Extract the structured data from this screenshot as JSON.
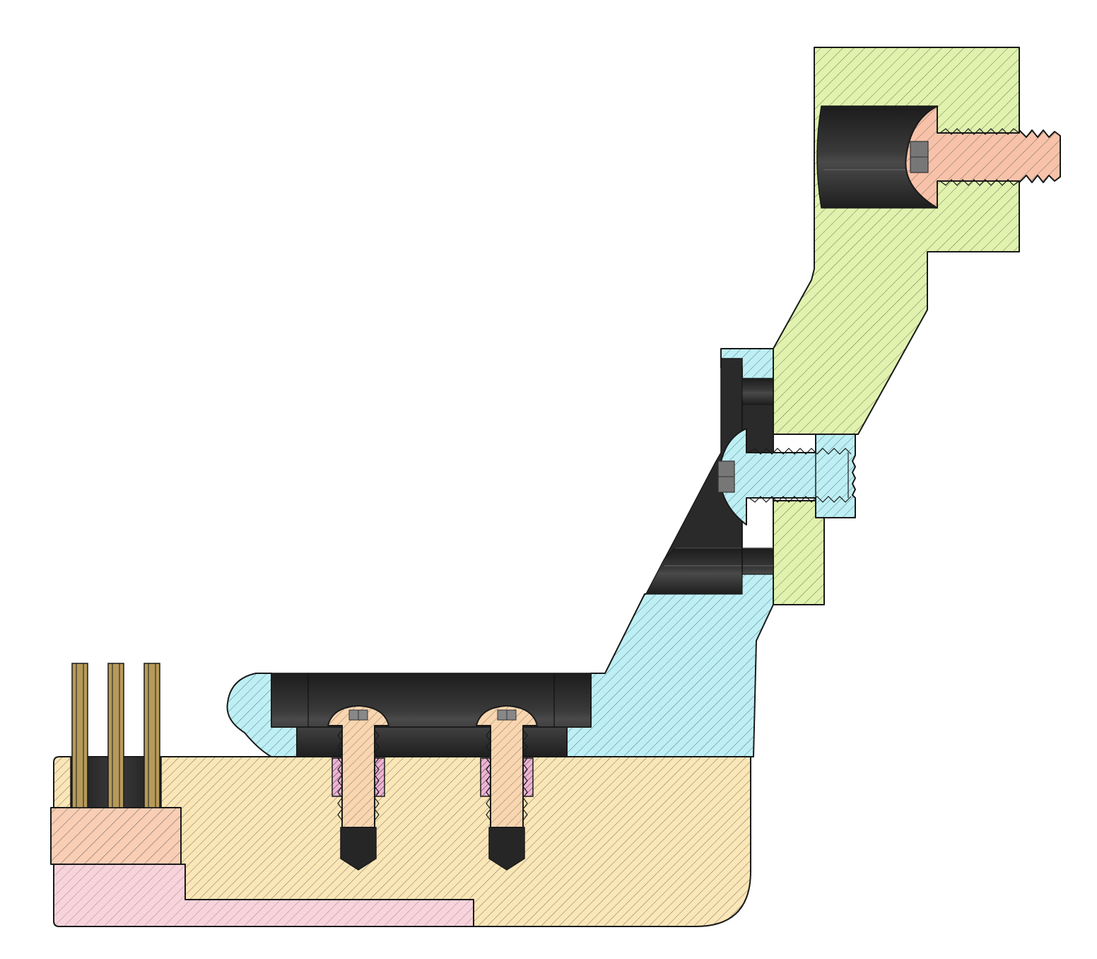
{
  "drawing": {
    "view": "section",
    "parts": [
      {
        "name": "base-plate",
        "color": "#fbe6b6"
      },
      {
        "name": "bottom-strip",
        "color": "#f7d3dc"
      },
      {
        "name": "connector-body",
        "color": "#f9ceb4"
      },
      {
        "name": "angled-bracket",
        "color": "#bdeff4"
      },
      {
        "name": "top-mount",
        "color": "#e0f2ae"
      },
      {
        "name": "top-screw",
        "color": "#f8c2aa"
      },
      {
        "name": "middle-screw",
        "color": "#bdeff4"
      },
      {
        "name": "left-screw",
        "color": "#f9d6b0"
      },
      {
        "name": "right-screw",
        "color": "#f9d6b0"
      },
      {
        "name": "threaded-insert",
        "color": "#efb3d6"
      },
      {
        "name": "header-pins",
        "color": "#c9a75e"
      }
    ],
    "cavity_color": "#2b2b2b"
  }
}
